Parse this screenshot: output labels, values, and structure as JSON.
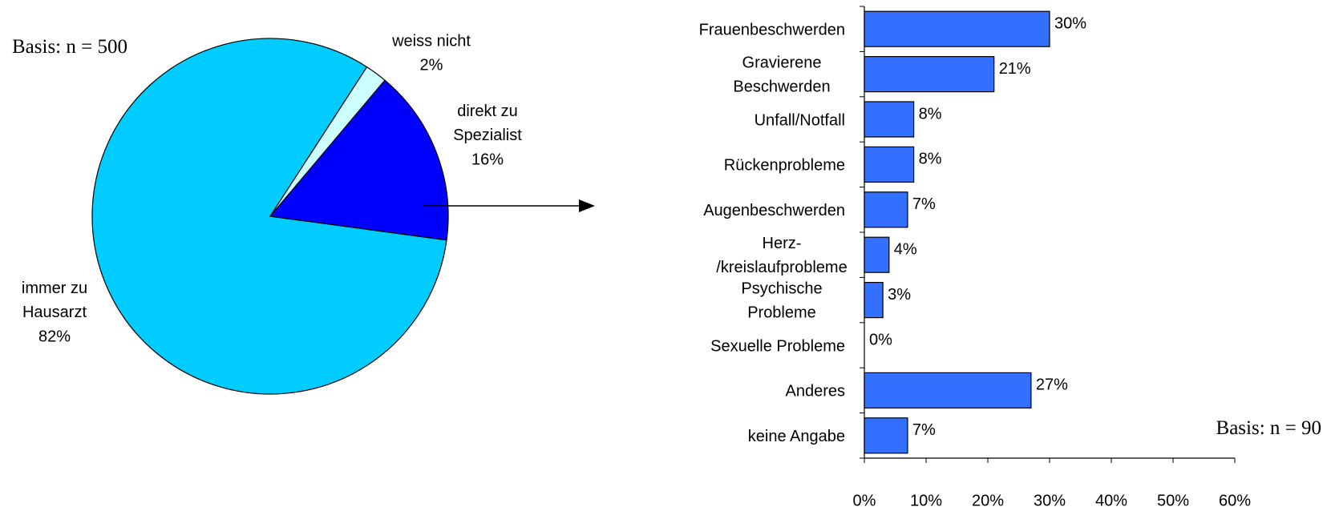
{
  "chart_data": [
    {
      "type": "pie",
      "annotation": "Basis: n = 500",
      "categories": [
        "immer zu\nHausarzt",
        "weiss nicht",
        "direkt zu\nSpezialist"
      ],
      "values": [
        82,
        2,
        16
      ],
      "value_labels": [
        "82%",
        "2%",
        "16%"
      ],
      "colors": [
        "#00ccff",
        "#ccffff",
        "#0000ff"
      ]
    },
    {
      "type": "hbar",
      "annotation": "Basis: n = 90",
      "categories": [
        "Frauenbeschwerden",
        "Gravierene\nBeschwerden",
        "Unfall/Notfall",
        "Rückenprobleme",
        "Augenbeschwerden",
        "Herz-\n/kreislaufprobleme",
        "Psychische\nProbleme",
        "Sexuelle Probleme",
        "Anderes",
        "keine Angabe"
      ],
      "values": [
        30,
        21,
        8,
        8,
        7,
        4,
        3,
        0,
        27,
        7
      ],
      "value_labels": [
        "30%",
        "21%",
        "8%",
        "8%",
        "7%",
        "4%",
        "3%",
        "0%",
        "27%",
        "7%"
      ],
      "color": "#3370ff",
      "xlim": [
        0,
        60
      ],
      "xticks": [
        {
          "value": 0,
          "label": "0%"
        },
        {
          "value": 10,
          "label": "10%"
        },
        {
          "value": 20,
          "label": "20%"
        },
        {
          "value": 30,
          "label": "30%"
        },
        {
          "value": 40,
          "label": "40%"
        },
        {
          "value": 50,
          "label": "50%"
        },
        {
          "value": 60,
          "label": "60%"
        }
      ]
    }
  ]
}
